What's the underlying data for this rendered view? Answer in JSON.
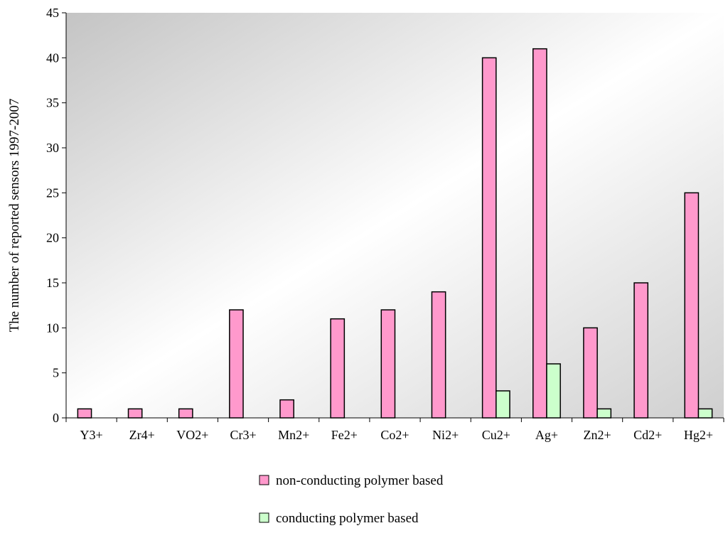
{
  "chart_data": {
    "type": "bar",
    "title": "",
    "xlabel": "",
    "ylabel": "The number of reported sensors 1997-2007",
    "ylim": [
      0,
      45
    ],
    "yticks": [
      0,
      5,
      10,
      15,
      20,
      25,
      30,
      35,
      40,
      45
    ],
    "categories": [
      "Y3+",
      "Zr4+",
      "VO2+",
      "Cr3+",
      "Mn2+",
      "Fe2+",
      "Co2+",
      "Ni2+",
      "Cu2+",
      "Ag+",
      "Zn2+",
      "Cd2+",
      "Hg2+"
    ],
    "series": [
      {
        "name": "non-conducting polymer based",
        "color": "#ff99cc",
        "values": [
          1,
          1,
          1,
          12,
          2,
          11,
          12,
          14,
          40,
          41,
          10,
          15,
          25
        ]
      },
      {
        "name": "conducting polymer based",
        "color": "#ccffcc",
        "values": [
          0,
          0,
          0,
          0,
          0,
          0,
          0,
          0,
          3,
          6,
          1,
          0,
          1
        ]
      }
    ],
    "grid": false,
    "legend_position": "bottom",
    "plot_background": "gradient-gray-to-white"
  }
}
